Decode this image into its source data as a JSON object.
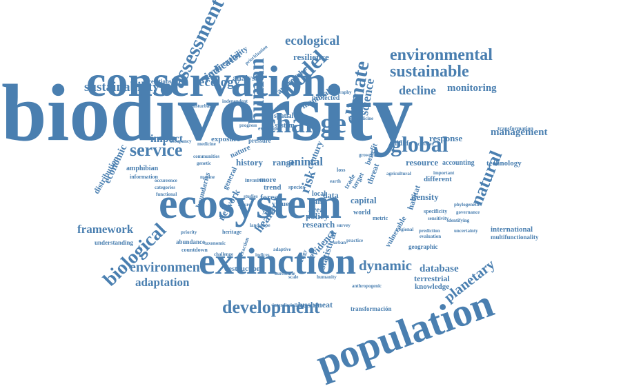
{
  "accent_color": "#4a7fb0",
  "words": {
    "biodiversity": "biodiversity",
    "conservation": "conservation",
    "ecosystem": "ecosystem",
    "extinction": "extinction",
    "population": "population",
    "change": "change",
    "development": "development",
    "global": "global",
    "service": "service",
    "environmental": "environmental",
    "sustainable": "sustainable",
    "ecological": "ecological",
    "resilience": "resilience",
    "assessment": "assessment",
    "sustainability": "sustainability",
    "ecology": "ecology",
    "indicator": "indicator",
    "vulnerability": "vulnerability",
    "analysis": "analysis",
    "relationship": "relationship",
    "human": "human",
    "model": "model",
    "climate": "climate",
    "science": "science",
    "natural": "natural",
    "decline": "decline",
    "monitoring": "monitoring",
    "management": "management",
    "transformation": "transformation",
    "impact": "impact",
    "economic": "economic",
    "distribution": "distribution",
    "amphibian": "amphibian",
    "information": "information",
    "biological": "biological",
    "framework": "framework",
    "understanding": "understanding",
    "environment": "environment",
    "adaptation": "adaptation",
    "dynamic": "dynamic",
    "database": "database",
    "terrestrial": "terrestrial",
    "knowledge": "knowledge",
    "planetary": "planetary",
    "bushmeat": "bushmeat",
    "transformacion": "transformación",
    "international": "international",
    "multifunctionality": "multifunctionality",
    "technology": "technology",
    "resource": "resource",
    "accounting": "accounting",
    "response": "response",
    "risk": "risk",
    "health": "health",
    "policy": "policy",
    "research": "research",
    "forest": "forest",
    "land": "land",
    "area": "area",
    "data": "data",
    "capital": "capital",
    "density": "density",
    "habitat": "habitat",
    "different": "different",
    "animal": "animal",
    "range": "range",
    "history": "history",
    "nature": "nature",
    "exposure": "exposure",
    "mammal": "mammal",
    "protected": "protected",
    "spatial": "spatial",
    "system": "system",
    "approach": "approach",
    "evidence": "evidence",
    "statistical": "statistical",
    "network": "network",
    "boundaries": "boundaries",
    "general": "general",
    "wildlife": "wildlife",
    "trend": "trend",
    "local": "local",
    "century": "century",
    "world": "world",
    "destruction": "destruction",
    "abundance": "abundance",
    "countdown": "countdown",
    "geographic": "geographic",
    "vulnerable": "vulnerable",
    "benefit": "benefit",
    "threat": "threat",
    "evolution": "evolution",
    "disturbance": "disturbance",
    "occurrence": "occurrence",
    "pressure": "pressure",
    "prediction": "prediction",
    "evaluation": "evaluation",
    "identifying": "identifying",
    "sensitivity": "sensitivity",
    "specificity": "specificity",
    "geography": "geography",
    "invasive": "invasive",
    "value": "value",
    "yield": "yield",
    "more": "more",
    "trade": "trade",
    "target": "target",
    "metric": "metric",
    "heritage": "heritage",
    "interaction": "interaction",
    "adaptive": "adaptive",
    "challenge": "challenge",
    "hurricane": "hurricane",
    "humanity": "humanity",
    "interdisciplinary": "interdisciplinary",
    "anthropogenic": "anthropogenic",
    "practice": "practice",
    "strategy": "strategy",
    "studies": "studies",
    "future": "future",
    "independent": "independent",
    "prioritization": "prioritization",
    "progress": "progress",
    "medicine": "medicine",
    "categories": "categories",
    "functional": "functional",
    "uncertainty": "uncertainty",
    "phylogenetic": "phylogenetic",
    "governance": "governance",
    "activities": "activities",
    "important": "important",
    "occupancy": "occupancy",
    "biomedicine": "biomedicine",
    "communities": "communities",
    "genetic": "genetic",
    "growth": "growth",
    "landscape": "landscape",
    "species": "species",
    "pollinator": "pollinator",
    "taxonomic": "taxonomic",
    "survey": "survey",
    "regional": "regional",
    "urban": "urban",
    "indices": "indices",
    "scale": "scale",
    "loss": "loss",
    "marine": "marine",
    "agricultural": "agricultural",
    "priority": "priority",
    "earth": "earth"
  }
}
